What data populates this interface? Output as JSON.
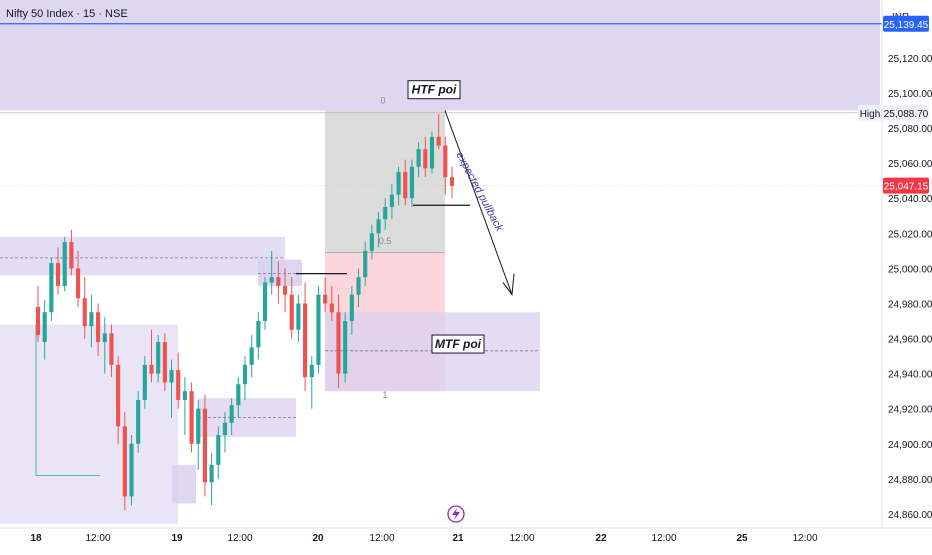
{
  "header": {
    "title": "Nifty 50 Index · 15 · NSE",
    "currency": "INR"
  },
  "colors": {
    "up": "#26a69a",
    "down": "#ef5350",
    "zone": "#d9d0ef",
    "zone_border": "#c4b8e6",
    "premium": "#bfbfbf",
    "discount": "#f7b6bd",
    "level_line": "#2962ff",
    "price_badge": "#f23645",
    "arrow_text": "#4a3aa0"
  },
  "chart_data": {
    "type": "candlestick",
    "symbol": "Nifty 50 Index",
    "interval": "15",
    "exchange": "NSE",
    "ylim": [
      24852,
      25153
    ],
    "y_ticks": [
      "25,120.00",
      "25,100.00",
      "25,080.00",
      "25,060.00",
      "25,040.00",
      "25,020.00",
      "25,000.00",
      "24,980.00",
      "24,960.00",
      "24,940.00",
      "24,920.00",
      "24,900.00",
      "24,880.00",
      "24,860.00"
    ],
    "x_ticks": [
      "18",
      "12:00",
      "19",
      "12:00",
      "20",
      "12:00",
      "21",
      "12:00",
      "22",
      "12:00",
      "25",
      "12:00"
    ],
    "price_labels": {
      "level": "25,139.45",
      "high": "25,088.70",
      "high_label": "High",
      "current": "25,047.15"
    },
    "annotations": {
      "htf_poi": "HTF poi",
      "mtf_poi": "MTF poi",
      "expected_pullback": "expected pullback",
      "fib_0": "0",
      "fib_05": "0.5",
      "fib_1": "1"
    },
    "candles": [
      {
        "o": 24978,
        "h": 24990,
        "l": 24958,
        "c": 24962
      },
      {
        "o": 24958,
        "h": 24982,
        "l": 24948,
        "c": 24975
      },
      {
        "o": 24975,
        "h": 25006,
        "l": 24970,
        "c": 25003
      },
      {
        "o": 25003,
        "h": 25012,
        "l": 24985,
        "c": 24990
      },
      {
        "o": 24990,
        "h": 25018,
        "l": 24987,
        "c": 25015
      },
      {
        "o": 25015,
        "h": 25022,
        "l": 24996,
        "c": 25000
      },
      {
        "o": 25000,
        "h": 25010,
        "l": 24978,
        "c": 24983
      },
      {
        "o": 24983,
        "h": 24995,
        "l": 24960,
        "c": 24967
      },
      {
        "o": 24967,
        "h": 24985,
        "l": 24955,
        "c": 24975
      },
      {
        "o": 24975,
        "h": 24980,
        "l": 24950,
        "c": 24958
      },
      {
        "o": 24958,
        "h": 24972,
        "l": 24940,
        "c": 24963
      },
      {
        "o": 24963,
        "h": 24968,
        "l": 24938,
        "c": 24945
      },
      {
        "o": 24945,
        "h": 24950,
        "l": 24900,
        "c": 24910
      },
      {
        "o": 24910,
        "h": 24918,
        "l": 24862,
        "c": 24870
      },
      {
        "o": 24870,
        "h": 24905,
        "l": 24865,
        "c": 24900
      },
      {
        "o": 24900,
        "h": 24930,
        "l": 24895,
        "c": 24925
      },
      {
        "o": 24925,
        "h": 24950,
        "l": 24920,
        "c": 24945
      },
      {
        "o": 24945,
        "h": 24965,
        "l": 24935,
        "c": 24940
      },
      {
        "o": 24940,
        "h": 24962,
        "l": 24935,
        "c": 24958
      },
      {
        "o": 24958,
        "h": 24963,
        "l": 24930,
        "c": 24935
      },
      {
        "o": 24935,
        "h": 24948,
        "l": 24915,
        "c": 24942
      },
      {
        "o": 24942,
        "h": 24952,
        "l": 24920,
        "c": 24925
      },
      {
        "o": 24925,
        "h": 24938,
        "l": 24905,
        "c": 24930
      },
      {
        "o": 24930,
        "h": 24935,
        "l": 24895,
        "c": 24900
      },
      {
        "o": 24900,
        "h": 24925,
        "l": 24885,
        "c": 24920
      },
      {
        "o": 24920,
        "h": 24928,
        "l": 24870,
        "c": 24878
      },
      {
        "o": 24878,
        "h": 24895,
        "l": 24865,
        "c": 24888
      },
      {
        "o": 24888,
        "h": 24910,
        "l": 24880,
        "c": 24905
      },
      {
        "o": 24905,
        "h": 24918,
        "l": 24895,
        "c": 24912
      },
      {
        "o": 24912,
        "h": 24926,
        "l": 24905,
        "c": 24922
      },
      {
        "o": 24922,
        "h": 24938,
        "l": 24915,
        "c": 24934
      },
      {
        "o": 24934,
        "h": 24950,
        "l": 24925,
        "c": 24945
      },
      {
        "o": 24945,
        "h": 24962,
        "l": 24938,
        "c": 24955
      },
      {
        "o": 24955,
        "h": 24975,
        "l": 24948,
        "c": 24970
      },
      {
        "o": 24970,
        "h": 24995,
        "l": 24965,
        "c": 24992
      },
      {
        "o": 24992,
        "h": 25010,
        "l": 24985,
        "c": 24995
      },
      {
        "o": 24995,
        "h": 25004,
        "l": 24980,
        "c": 24990
      },
      {
        "o": 24990,
        "h": 25000,
        "l": 24975,
        "c": 24985
      },
      {
        "o": 24985,
        "h": 24995,
        "l": 24960,
        "c": 24965
      },
      {
        "o": 24965,
        "h": 24985,
        "l": 24958,
        "c": 24980
      },
      {
        "o": 24980,
        "h": 24992,
        "l": 24930,
        "c": 24938
      },
      {
        "o": 24938,
        "h": 24950,
        "l": 24920,
        "c": 24945
      },
      {
        "o": 24945,
        "h": 24990,
        "l": 24940,
        "c": 24985
      },
      {
        "o": 24985,
        "h": 24995,
        "l": 24975,
        "c": 24980
      },
      {
        "o": 24980,
        "h": 24990,
        "l": 24970,
        "c": 24975
      },
      {
        "o": 24975,
        "h": 24985,
        "l": 24932,
        "c": 24940
      },
      {
        "o": 24940,
        "h": 24975,
        "l": 24935,
        "c": 24970
      },
      {
        "o": 24970,
        "h": 24990,
        "l": 24962,
        "c": 24985
      },
      {
        "o": 24985,
        "h": 25000,
        "l": 24978,
        "c": 24995
      },
      {
        "o": 24995,
        "h": 25015,
        "l": 24990,
        "c": 25010
      },
      {
        "o": 25010,
        "h": 25025,
        "l": 25005,
        "c": 25020
      },
      {
        "o": 25020,
        "h": 25032,
        "l": 25012,
        "c": 25028
      },
      {
        "o": 25028,
        "h": 25040,
        "l": 25022,
        "c": 25035
      },
      {
        "o": 25035,
        "h": 25048,
        "l": 25028,
        "c": 25042
      },
      {
        "o": 25042,
        "h": 25058,
        "l": 25036,
        "c": 25055
      },
      {
        "o": 25055,
        "h": 25062,
        "l": 25036,
        "c": 25040
      },
      {
        "o": 25040,
        "h": 25062,
        "l": 25035,
        "c": 25058
      },
      {
        "o": 25058,
        "h": 25072,
        "l": 25052,
        "c": 25068
      },
      {
        "o": 25068,
        "h": 25075,
        "l": 25052,
        "c": 25057
      },
      {
        "o": 25057,
        "h": 25078,
        "l": 25054,
        "c": 25075
      },
      {
        "o": 25075,
        "h": 25088,
        "l": 25068,
        "c": 25070
      },
      {
        "o": 25070,
        "h": 25075,
        "l": 25042,
        "c": 25052
      },
      {
        "o": 25052,
        "h": 25058,
        "l": 25040,
        "c": 25047
      }
    ]
  }
}
